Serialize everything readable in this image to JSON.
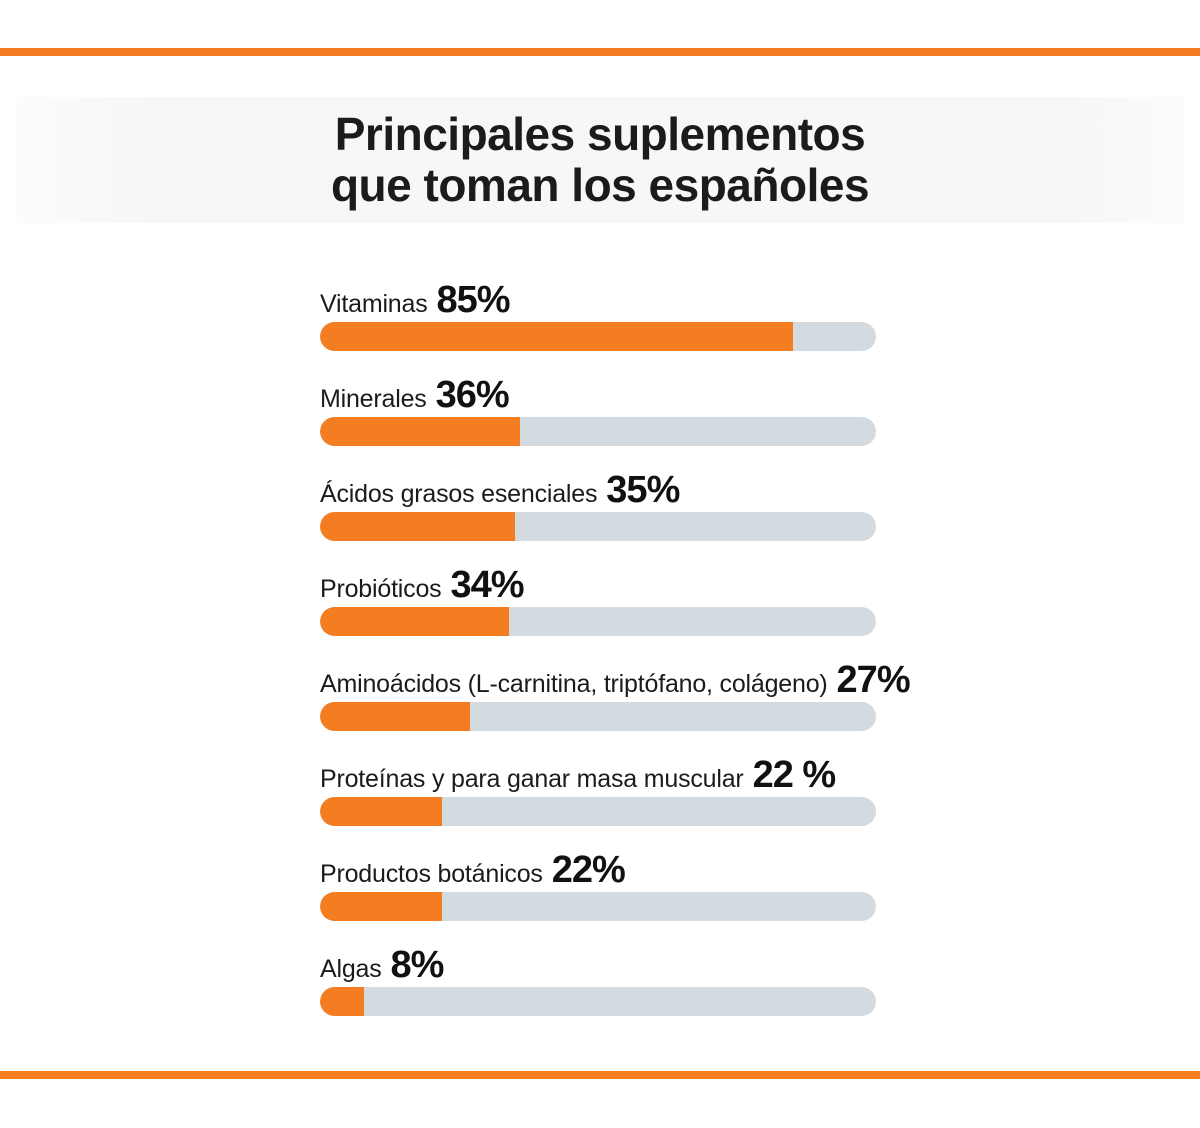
{
  "title": {
    "line1": "Principales suplementos",
    "line2": "que toman los españoles"
  },
  "colors": {
    "accent": "#f47d21",
    "track": "#d4dbe0",
    "band": "#f6f7f8",
    "text": "#1c1b1a"
  },
  "chart_data": {
    "type": "bar",
    "orientation": "horizontal",
    "title": "Principales suplementos que toman los españoles",
    "unit": "%",
    "xlim": [
      0,
      100
    ],
    "grid": false,
    "legend": false,
    "categories": [
      "Vitaminas",
      "Minerales",
      "Ácidos grasos esenciales",
      "Probióticos",
      "Aminoácidos (L-carnitina, triptófano, colágeno)",
      "Proteínas y para ganar masa muscular",
      "Productos botánicos",
      "Algas"
    ],
    "values": [
      85,
      36,
      35,
      34,
      27,
      22,
      22,
      8
    ],
    "items": [
      {
        "label": "Vitaminas",
        "value": 85,
        "pct_text": "85%"
      },
      {
        "label": "Minerales",
        "value": 36,
        "pct_text": "36%"
      },
      {
        "label": "Ácidos grasos esenciales",
        "value": 35,
        "pct_text": "35%"
      },
      {
        "label": "Probióticos",
        "value": 34,
        "pct_text": "34%"
      },
      {
        "label": "Aminoácidos (L-carnitina, triptófano, colágeno)",
        "value": 27,
        "pct_text": "27%"
      },
      {
        "label": "Proteínas y para ganar masa muscular",
        "value": 22,
        "pct_text": "22 %"
      },
      {
        "label": "Productos botánicos",
        "value": 22,
        "pct_text": "22%"
      },
      {
        "label": "Algas",
        "value": 8,
        "pct_text": "8%"
      }
    ]
  }
}
